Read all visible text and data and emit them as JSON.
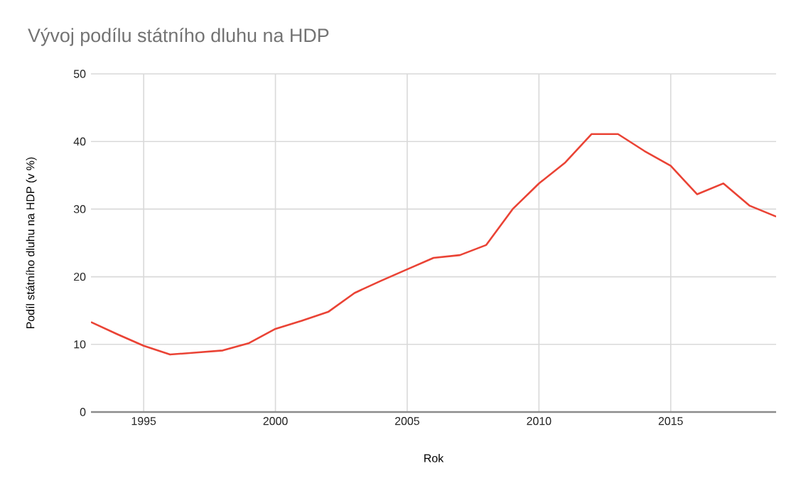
{
  "chart_data": {
    "type": "line",
    "title": "Vývoj podílu státního dluhu na HDP",
    "xlabel": "Rok",
    "ylabel": "Podíl státního dluhu na HDP (v %)",
    "x": [
      1993,
      1994,
      1995,
      1996,
      1997,
      1998,
      1999,
      2000,
      2001,
      2002,
      2003,
      2004,
      2005,
      2006,
      2007,
      2008,
      2009,
      2010,
      2011,
      2012,
      2013,
      2014,
      2015,
      2016,
      2017,
      2018,
      2019
    ],
    "series": [
      {
        "color": "#ea4335",
        "values": [
          13.3,
          11.5,
          9.8,
          8.5,
          8.8,
          9.1,
          10.2,
          12.3,
          13.5,
          14.8,
          17.6,
          19.4,
          21.1,
          22.8,
          23.2,
          24.7,
          30.0,
          33.8,
          36.9,
          41.1,
          41.1,
          38.6,
          36.4,
          32.2,
          33.8,
          30.5,
          28.9
        ]
      }
    ],
    "xlim": [
      1993,
      2019
    ],
    "xticks": [
      1995,
      2000,
      2005,
      2010,
      2015
    ],
    "ylim": [
      0,
      50
    ],
    "yticks": [
      0,
      10,
      20,
      30,
      40,
      50
    ],
    "grid": true,
    "marker": "none",
    "line_style": "solid"
  }
}
